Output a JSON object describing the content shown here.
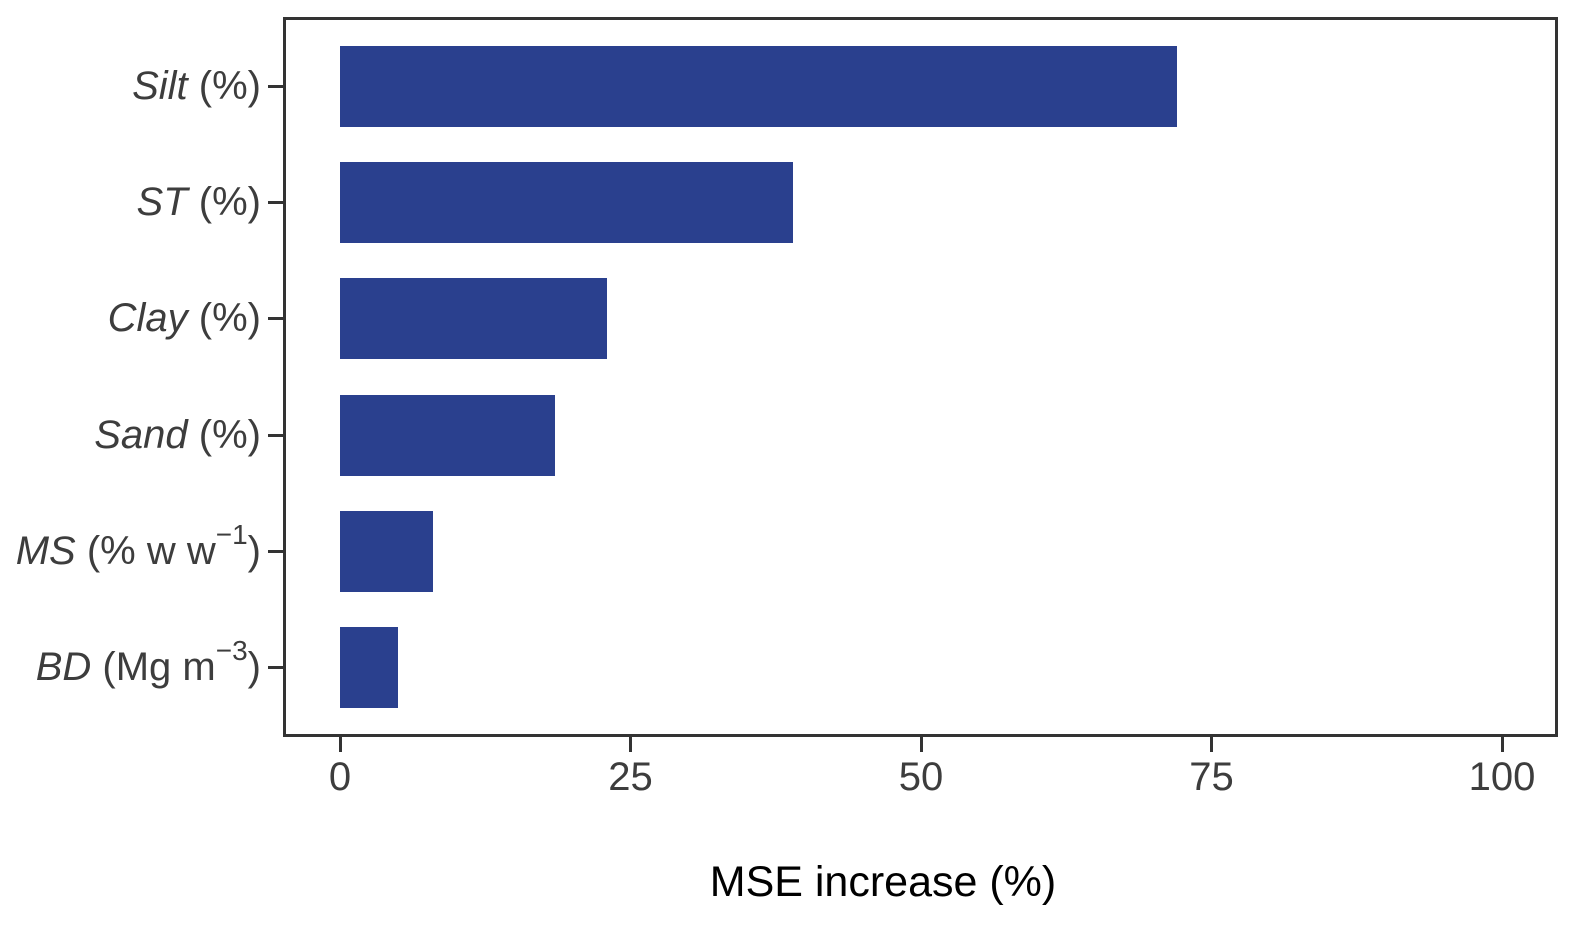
{
  "figure": {
    "background": "#FFFFFF",
    "axis_color": "#333333",
    "tick_text_color": "#3D3D3D",
    "title_color": "#000000"
  },
  "chart_data": {
    "type": "bar",
    "orientation": "horizontal",
    "title": "",
    "xlabel": "MSE increase (%)",
    "ylabel": "",
    "xlim": [
      0,
      100
    ],
    "x_ticks": [
      0,
      25,
      50,
      75,
      100
    ],
    "grid": false,
    "legend": false,
    "bar_color": "#2A408E",
    "categories": [
      {
        "label": "Silt (%)",
        "name": "Silt",
        "unit_pre": " (%)",
        "sup": "",
        "unit_post": "",
        "value": 72
      },
      {
        "label": "ST (%)",
        "name": "ST",
        "unit_pre": " (%)",
        "sup": "",
        "unit_post": "",
        "value": 39
      },
      {
        "label": "Clay (%)",
        "name": "Clay",
        "unit_pre": " (%)",
        "sup": "",
        "unit_post": "",
        "value": 23
      },
      {
        "label": "Sand (%)",
        "name": "Sand",
        "unit_pre": " (%)",
        "sup": "",
        "unit_post": "",
        "value": 18.5
      },
      {
        "label": "MS (% w w−1)",
        "name": "MS",
        "unit_pre": " (% w w",
        "sup": "−1",
        "unit_post": ")",
        "value": 8
      },
      {
        "label": "BD (Mg m−3)",
        "name": "BD",
        "unit_pre": " (Mg m",
        "sup": "−3",
        "unit_post": ")",
        "value": 5
      }
    ]
  }
}
